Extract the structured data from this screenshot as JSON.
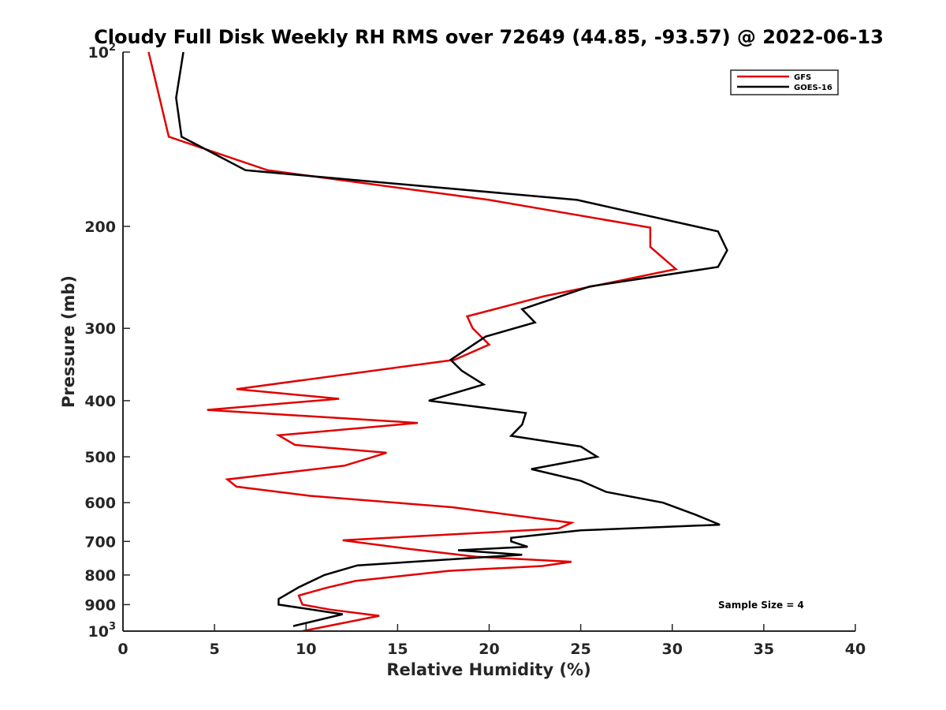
{
  "chart_data": {
    "type": "line",
    "title": "Cloudy Full Disk Weekly RH RMS over 72649 (44.85, -93.57) @ 2022-06-13",
    "xlabel": "Relative Humidity (%)",
    "ylabel": "Pressure (mb)",
    "xlim": [
      0,
      40
    ],
    "ylim": [
      100,
      1000
    ],
    "yscale": "log",
    "y_reversed": true,
    "xticks": [
      0,
      5,
      10,
      15,
      20,
      25,
      30,
      35,
      40
    ],
    "xtick_labels": [
      "0",
      "5",
      "10",
      "15",
      "20",
      "25",
      "30",
      "35",
      "40"
    ],
    "yticks": [
      {
        "value": 100,
        "base": "10",
        "exp": "2"
      },
      {
        "value": 200,
        "base": "200",
        "exp": ""
      },
      {
        "value": 300,
        "base": "300",
        "exp": ""
      },
      {
        "value": 400,
        "base": "400",
        "exp": ""
      },
      {
        "value": 500,
        "base": "500",
        "exp": ""
      },
      {
        "value": 600,
        "base": "600",
        "exp": ""
      },
      {
        "value": 700,
        "base": "700",
        "exp": ""
      },
      {
        "value": 800,
        "base": "800",
        "exp": ""
      },
      {
        "value": 900,
        "base": "900",
        "exp": ""
      },
      {
        "value": 1000,
        "base": "10",
        "exp": "3"
      }
    ],
    "grid": false,
    "legend_position": "top-right",
    "annotation": "Sample Size = 4",
    "series": [
      {
        "name": "GFS",
        "color": "#e00000",
        "x": [
          1.4,
          2.0,
          2.5,
          7.9,
          20.0,
          28.8,
          28.8,
          30.2,
          23.0,
          18.8,
          19.1,
          20.0,
          18.1,
          6.2,
          11.8,
          4.6,
          16.1,
          8.5,
          9.4,
          14.4,
          12.1,
          5.7,
          6.2,
          10.2,
          18.0,
          24.5,
          23.8,
          12.0,
          15.6,
          19.3,
          24.5,
          22.9,
          17.8,
          12.7,
          11.1,
          9.6,
          9.8,
          11.3,
          14.0,
          9.8
        ],
        "y": [
          100,
          120,
          140,
          160,
          180,
          201,
          217,
          237,
          264,
          286,
          300,
          320,
          340,
          382,
          397,
          415,
          437,
          459,
          477,
          492,
          518,
          547,
          563,
          584,
          611,
          650,
          665,
          697,
          721,
          744,
          759,
          772,
          787,
          819,
          842,
          868,
          900,
          918,
          941,
          1000
        ]
      },
      {
        "name": "GOES-16",
        "color": "#000000",
        "x": [
          3.3,
          2.9,
          3.2,
          6.7,
          24.8,
          32.5,
          33.0,
          32.5,
          25.5,
          21.8,
          22.5,
          19.8,
          17.9,
          18.5,
          19.7,
          16.7,
          22.0,
          21.8,
          21.2,
          25.0,
          25.9,
          22.3,
          25.0,
          26.4,
          29.5,
          31.3,
          32.6,
          25.0,
          21.2,
          21.2,
          22.1,
          18.3,
          21.8,
          12.8,
          11.0,
          9.6,
          8.5,
          8.5,
          12.0,
          9.3
        ],
        "y": [
          100,
          120,
          140,
          160,
          180,
          204,
          220,
          235,
          254,
          278,
          293,
          310,
          340,
          355,
          375,
          400,
          420,
          440,
          460,
          480,
          500,
          525,
          550,
          575,
          600,
          630,
          655,
          670,
          690,
          700,
          715,
          725,
          738,
          770,
          800,
          840,
          880,
          900,
          935,
          980
        ]
      }
    ]
  }
}
